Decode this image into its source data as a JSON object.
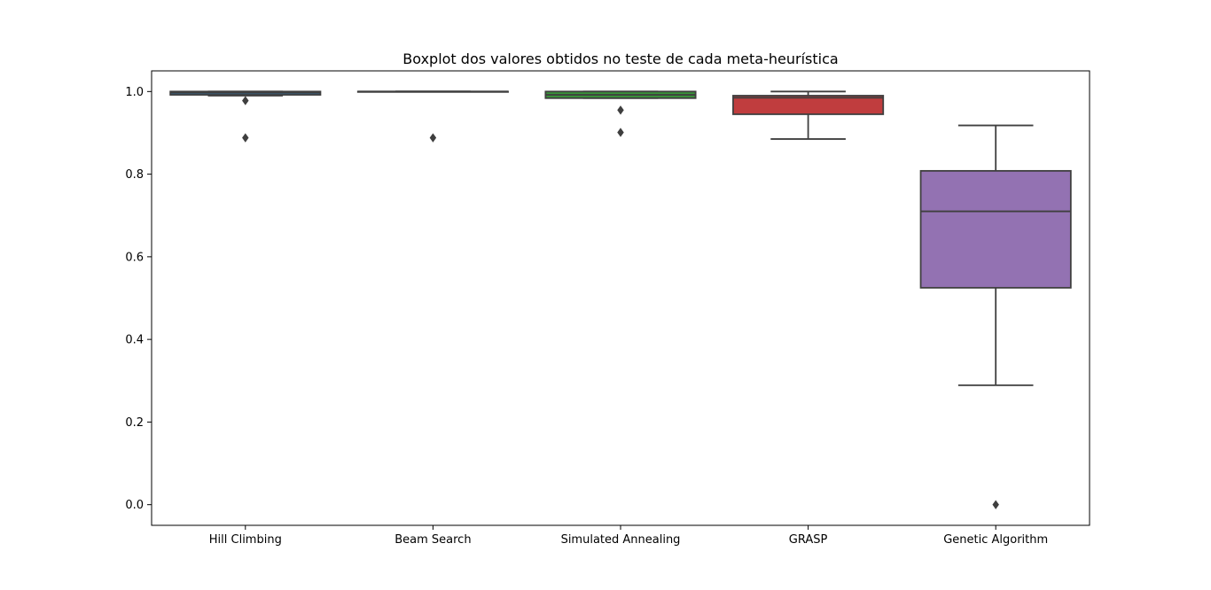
{
  "chart_data": {
    "type": "box",
    "title": "Boxplot dos valores obtidos no teste de cada meta-heurística",
    "xlabel": "",
    "ylabel": "",
    "ylim": [
      -0.05,
      1.05
    ],
    "yticks": [
      "0.0",
      "0.2",
      "0.4",
      "0.6",
      "0.8",
      "1.0"
    ],
    "grid": false,
    "categories": [
      "Hill Climbing",
      "Beam Search",
      "Simulated Annealing",
      "GRASP",
      "Genetic Algorithm"
    ],
    "boxes": [
      {
        "category": "Hill Climbing",
        "color": "#3274a1",
        "q1": 0.992,
        "median": 0.997,
        "q3": 1.0,
        "whisker_low": 0.99,
        "whisker_high": 1.0,
        "outliers": [
          0.978,
          0.888
        ]
      },
      {
        "category": "Beam Search",
        "color": "#e1812c",
        "q1": 1.0,
        "median": 1.0,
        "q3": 1.0,
        "whisker_low": 1.0,
        "whisker_high": 1.0,
        "outliers": [
          0.888
        ]
      },
      {
        "category": "Simulated Annealing",
        "color": "#3a923a",
        "q1": 0.984,
        "median": 0.992,
        "q3": 1.0,
        "whisker_low": 0.984,
        "whisker_high": 1.0,
        "outliers": [
          0.955,
          0.901
        ]
      },
      {
        "category": "GRASP",
        "color": "#c03d3e",
        "q1": 0.945,
        "median": 0.985,
        "q3": 0.99,
        "whisker_low": 0.885,
        "whisker_high": 1.0,
        "outliers": []
      },
      {
        "category": "Genetic Algorithm",
        "color": "#9372b2",
        "q1": 0.525,
        "median": 0.71,
        "q3": 0.808,
        "whisker_low": 0.289,
        "whisker_high": 0.918,
        "outliers": [
          0.0
        ]
      }
    ]
  }
}
